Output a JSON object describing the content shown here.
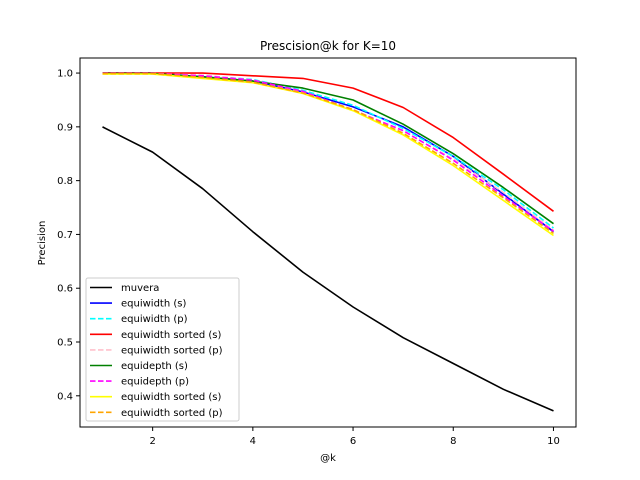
{
  "chart_data": {
    "type": "line",
    "title": "Prescision@k for K=10",
    "xlabel": "@k",
    "ylabel": "Precision",
    "xlim": [
      0.55,
      10.45
    ],
    "ylim": [
      0.342,
      1.028
    ],
    "xticks": [
      2,
      4,
      6,
      8,
      10
    ],
    "yticks": [
      0.4,
      0.5,
      0.6,
      0.7,
      0.8,
      0.9,
      1.0
    ],
    "ytick_labels": [
      "0.4",
      "0.5",
      "0.6",
      "0.7",
      "0.8",
      "0.9",
      "1.0"
    ],
    "grid": false,
    "legend_position": "lower-left",
    "x": [
      1,
      2,
      3,
      4,
      5,
      6,
      7,
      8,
      9,
      10
    ],
    "series": [
      {
        "name": "muvera",
        "color": "#000000",
        "dash": "solid",
        "values": [
          0.9,
          0.853,
          0.785,
          0.705,
          0.63,
          0.565,
          0.508,
          0.46,
          0.412,
          0.372
        ]
      },
      {
        "name": "equiwidth (s)",
        "color": "#0000ff",
        "dash": "solid",
        "values": [
          1.0,
          1.0,
          0.993,
          0.985,
          0.965,
          0.937,
          0.9,
          0.845,
          0.775,
          0.705
        ]
      },
      {
        "name": "equiwidth (p)",
        "color": "#00ffff",
        "dash": "dashed",
        "values": [
          0.999,
          0.999,
          0.995,
          0.988,
          0.968,
          0.94,
          0.897,
          0.845,
          0.783,
          0.712
        ]
      },
      {
        "name": "equiwidth sorted (s)",
        "color": "#ff0000",
        "dash": "solid",
        "values": [
          1.0,
          1.0,
          1.0,
          0.995,
          0.99,
          0.972,
          0.936,
          0.88,
          0.812,
          0.743
        ]
      },
      {
        "name": "equiwidth sorted (p)",
        "color": "#ffc0cb",
        "dash": "dashed",
        "values": [
          0.999,
          0.999,
          0.996,
          0.987,
          0.965,
          0.932,
          0.892,
          0.84,
          0.778,
          0.708
        ]
      },
      {
        "name": "equidepth (s)",
        "color": "#008000",
        "dash": "solid",
        "values": [
          0.999,
          0.999,
          0.993,
          0.985,
          0.972,
          0.95,
          0.905,
          0.85,
          0.787,
          0.72
        ]
      },
      {
        "name": "equidepth (p)",
        "color": "#ff00ff",
        "dash": "dashed",
        "values": [
          0.999,
          0.999,
          0.995,
          0.987,
          0.966,
          0.931,
          0.893,
          0.838,
          0.771,
          0.706
        ]
      },
      {
        "name": "equiwidth sorted (s)",
        "color": "#ffff00",
        "dash": "solid",
        "values": [
          0.998,
          0.998,
          0.99,
          0.982,
          0.962,
          0.93,
          0.885,
          0.828,
          0.763,
          0.698
        ]
      },
      {
        "name": "equiwidth sorted (p)",
        "color": "#ffa500",
        "dash": "dashed",
        "values": [
          0.999,
          0.999,
          0.992,
          0.983,
          0.963,
          0.932,
          0.888,
          0.832,
          0.768,
          0.702
        ]
      }
    ]
  }
}
